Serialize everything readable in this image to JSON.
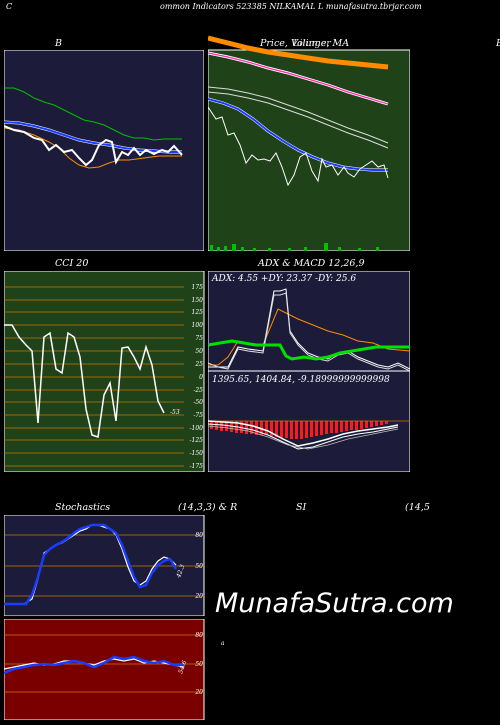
{
  "header": {
    "letter": "C",
    "title": "ommon  Indicators 523385 NILKAMAL  L  munafasutra.tbrjar.com"
  },
  "panels": {
    "bollinger": {
      "label": "B"
    },
    "price": {
      "label": "Price,  Volume,  MA",
      "label_overlay": "Lilinger"
    },
    "right_letter": "B",
    "cci": {
      "label": "CCI 20",
      "last_value": "-53",
      "ticks": [
        "175",
        "150",
        "125",
        "100",
        "75",
        "50",
        "25",
        "0",
        "-25",
        "-50",
        "-75",
        "-100",
        "-125",
        "-150",
        "-175"
      ]
    },
    "adx": {
      "label": "ADX  & MACD 12,26,9",
      "values": "ADX: 4.55 +DY: 23.37 -DY: 25.6"
    },
    "macd": {
      "values": "1395.65,  1404.84,  -9.18999999999998"
    },
    "stoch": {
      "label": "Stochastics",
      "params": "(14,3,3) & R",
      "last_value": "42.3",
      "ticks": [
        "80",
        "50",
        "20"
      ]
    },
    "rsi": {
      "label": "SI",
      "params": "(14,5",
      "last_value": "54.6",
      "ticks": [
        "80",
        "50",
        "20"
      ],
      "side_mark": "a"
    }
  },
  "watermark": "MunafaSutra.com",
  "colors": {
    "navy_bg": "#1c1c3a",
    "green_bg": "#1f4219",
    "red_bg": "#7a0000",
    "orange_line": "#ff8c00",
    "blue_line": "#1a3cff",
    "green_line": "#00c000",
    "grid_orange": "#c87800"
  }
}
